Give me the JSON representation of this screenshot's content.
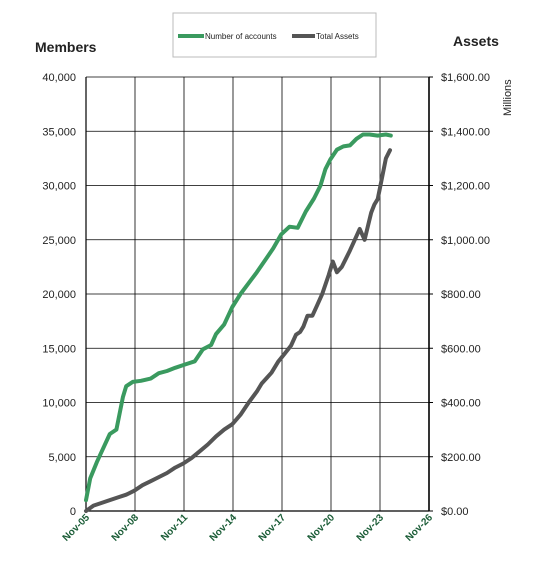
{
  "chart_data": {
    "type": "line",
    "title": "",
    "left_axis_title": "Members",
    "right_axis_title": "Assets",
    "right_axis_unit": "Millions",
    "legend_position": "top-center",
    "grid": true,
    "x_ticks": [
      "Nov-05",
      "Nov-08",
      "Nov-11",
      "Nov-14",
      "Nov-17",
      "Nov-20",
      "Nov-23",
      "Nov-26"
    ],
    "y_left": {
      "min": 0,
      "max": 40000,
      "ticks": [
        "0",
        "5,000",
        "10,000",
        "15,000",
        "20,000",
        "25,000",
        "30,000",
        "35,000",
        "40,000"
      ]
    },
    "y_right": {
      "min": 0,
      "max": 1600,
      "ticks": [
        "$0.00",
        "$200.00",
        "$400.00",
        "$600.00",
        "$800.00",
        "$1,000.00",
        "$1,200.00",
        "$1,400.00",
        "$1,600.00"
      ]
    },
    "series": [
      {
        "name": "Number of accounts",
        "axis": "left",
        "color": "#3a9a5f",
        "x": [
          2005.84,
          2006.1,
          2006.5,
          2006.9,
          2007.3,
          2007.7,
          2008.1,
          2008.3,
          2008.7,
          2009.2,
          2009.8,
          2010.3,
          2010.8,
          2011.3,
          2011.9,
          2012.5,
          2013.0,
          2013.5,
          2013.8,
          2014.3,
          2014.8,
          2015.3,
          2015.8,
          2016.3,
          2016.8,
          2017.3,
          2017.8,
          2018.3,
          2018.8,
          2019.3,
          2019.8,
          2020.2,
          2020.5,
          2020.8,
          2021.2,
          2021.6,
          2022.0,
          2022.4,
          2022.8,
          2023.2,
          2023.7,
          2024.2,
          2024.5
        ],
        "y": [
          1000,
          3000,
          4500,
          5800,
          7100,
          7500,
          10500,
          11500,
          11900,
          12000,
          12200,
          12700,
          12900,
          13200,
          13500,
          13800,
          14900,
          15300,
          16300,
          17200,
          18800,
          20000,
          21000,
          22000,
          23100,
          24200,
          25500,
          26200,
          26100,
          27600,
          28800,
          30000,
          31500,
          32400,
          33300,
          33600,
          33700,
          34300,
          34700,
          34700,
          34600,
          34700,
          34600
        ],
        "values_note": ""
      },
      {
        "name": "Total Assets",
        "axis": "right",
        "color": "#555555",
        "x": [
          2005.84,
          2006.3,
          2006.8,
          2007.3,
          2007.8,
          2008.3,
          2008.8,
          2009.3,
          2009.8,
          2010.3,
          2010.8,
          2011.3,
          2011.8,
          2012.3,
          2012.8,
          2013.3,
          2013.8,
          2014.3,
          2014.8,
          2015.3,
          2015.8,
          2016.3,
          2016.6,
          2016.9,
          2017.2,
          2017.6,
          2018.0,
          2018.4,
          2018.7,
          2018.95,
          2019.15,
          2019.4,
          2019.7,
          2020.0,
          2020.3,
          2020.7,
          2020.95,
          2021.2,
          2021.5,
          2021.75,
          2022.0,
          2022.3,
          2022.6,
          2022.9,
          2023.1,
          2023.3,
          2023.5,
          2023.7,
          2023.9,
          2024.2,
          2024.45
        ],
        "y": [
          0,
          20,
          30,
          40,
          50,
          60,
          75,
          95,
          110,
          125,
          140,
          160,
          175,
          195,
          220,
          245,
          275,
          300,
          320,
          355,
          400,
          440,
          470,
          490,
          510,
          550,
          580,
          610,
          650,
          660,
          680,
          720,
          720,
          760,
          800,
          870,
          920,
          880,
          900,
          930,
          960,
          1000,
          1040,
          1000,
          1050,
          1100,
          1130,
          1150,
          1210,
          1300,
          1330
        ]
      }
    ]
  }
}
